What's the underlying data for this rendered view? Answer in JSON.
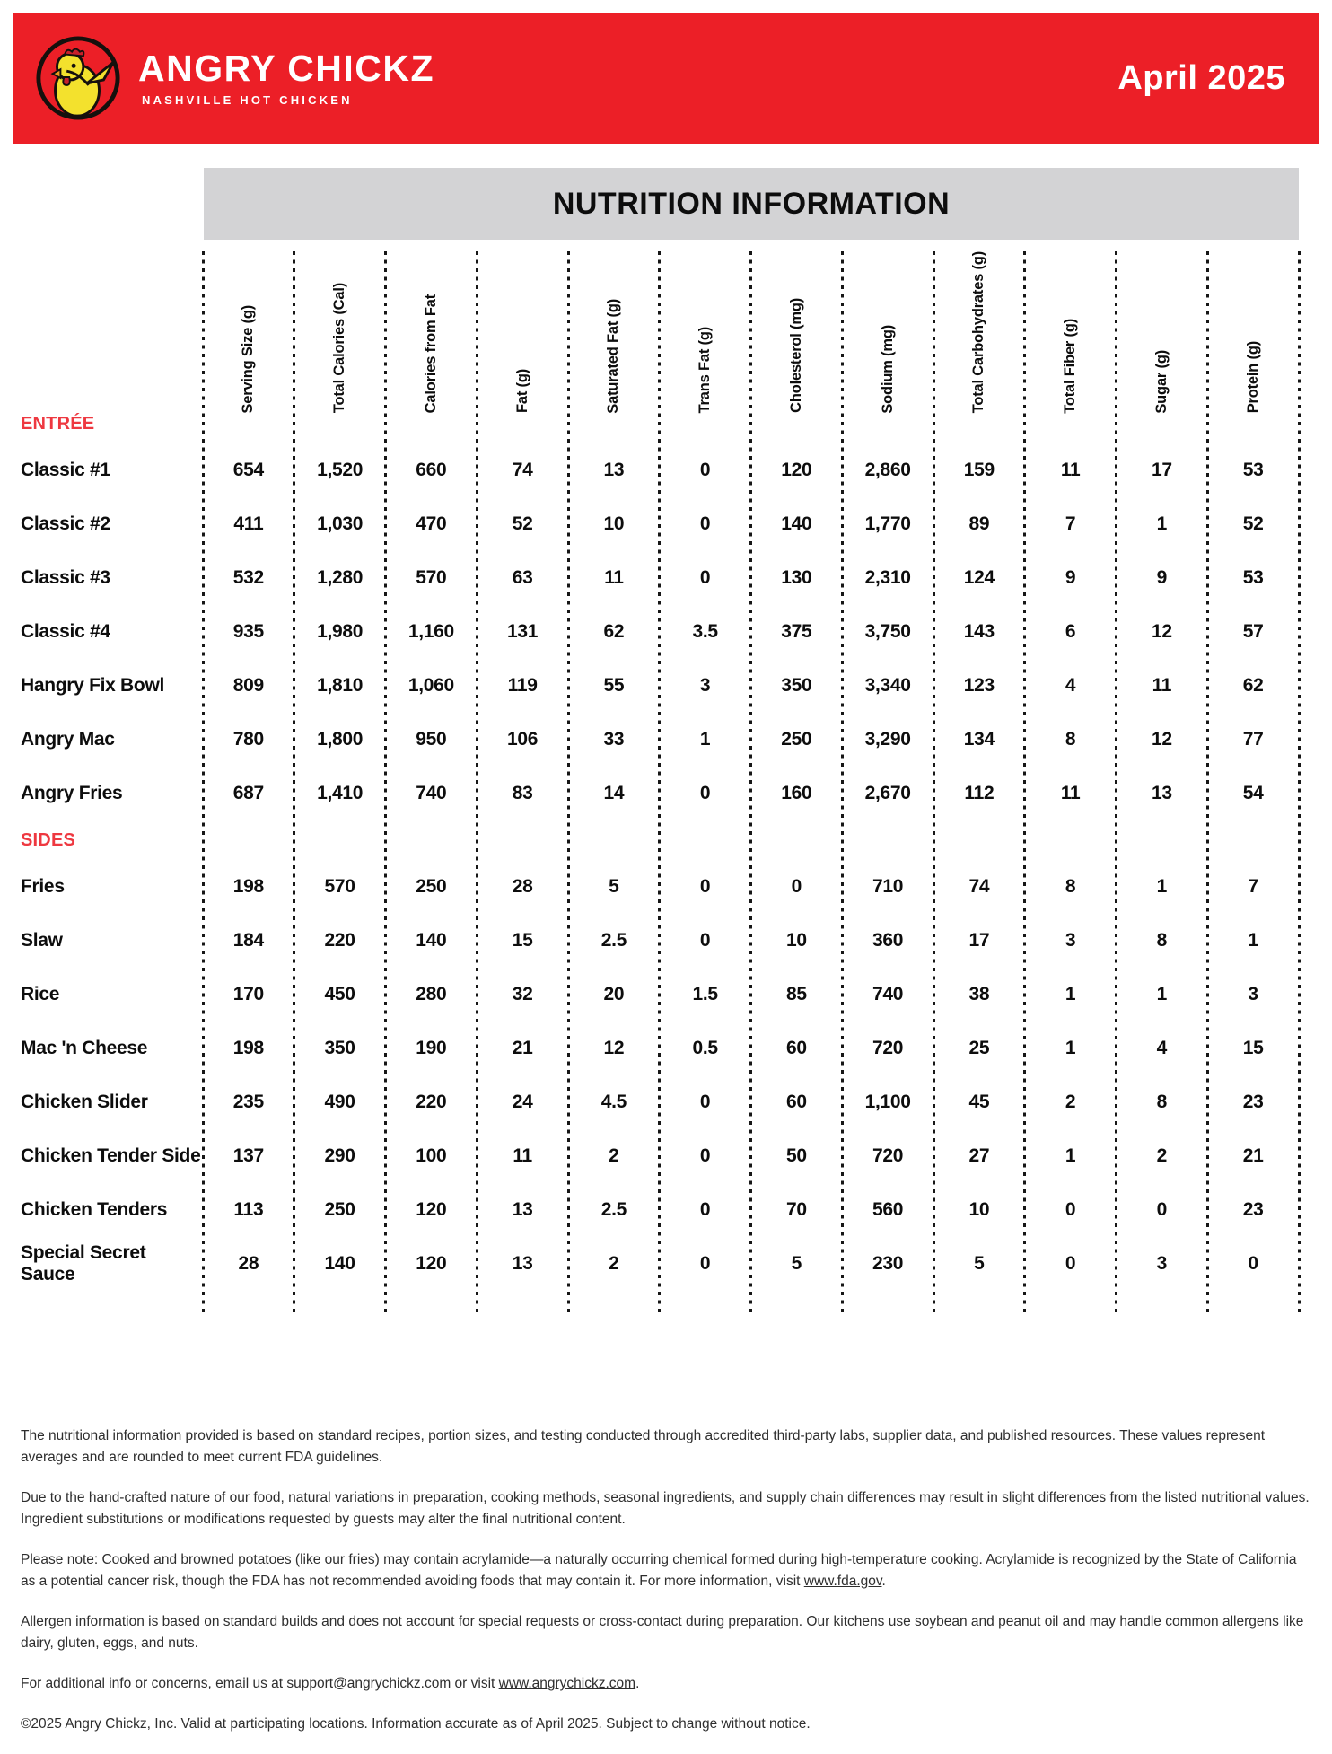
{
  "header": {
    "brand": "ANGRY CHICKZ",
    "tagline": "NASHVILLE HOT CHICKEN",
    "date": "April 2025"
  },
  "banner": {
    "title": "NUTRITION INFORMATION"
  },
  "table": {
    "columns": [
      "Serving Size (g)",
      "Total Calories (Cal)",
      "Calories from Fat",
      "Fat (g)",
      "Saturated Fat (g)",
      "Trans Fat (g)",
      "Cholesterol (mg)",
      "Sodium (mg)",
      "Total Carbohydrates (g)",
      "Total Fiber (g)",
      "Sugar (g)",
      "Protein (g)"
    ],
    "sections": [
      {
        "label": "ENTRÉE",
        "rows": [
          {
            "name": "Classic #1",
            "values": [
              "654",
              "1,520",
              "660",
              "74",
              "13",
              "0",
              "120",
              "2,860",
              "159",
              "11",
              "17",
              "53"
            ]
          },
          {
            "name": "Classic #2",
            "values": [
              "411",
              "1,030",
              "470",
              "52",
              "10",
              "0",
              "140",
              "1,770",
              "89",
              "7",
              "1",
              "52"
            ]
          },
          {
            "name": "Classic #3",
            "values": [
              "532",
              "1,280",
              "570",
              "63",
              "11",
              "0",
              "130",
              "2,310",
              "124",
              "9",
              "9",
              "53"
            ]
          },
          {
            "name": "Classic #4",
            "values": [
              "935",
              "1,980",
              "1,160",
              "131",
              "62",
              "3.5",
              "375",
              "3,750",
              "143",
              "6",
              "12",
              "57"
            ]
          },
          {
            "name": "Hangry Fix Bowl",
            "values": [
              "809",
              "1,810",
              "1,060",
              "119",
              "55",
              "3",
              "350",
              "3,340",
              "123",
              "4",
              "11",
              "62"
            ]
          },
          {
            "name": "Angry Mac",
            "values": [
              "780",
              "1,800",
              "950",
              "106",
              "33",
              "1",
              "250",
              "3,290",
              "134",
              "8",
              "12",
              "77"
            ]
          },
          {
            "name": "Angry Fries",
            "values": [
              "687",
              "1,410",
              "740",
              "83",
              "14",
              "0",
              "160",
              "2,670",
              "112",
              "11",
              "13",
              "54"
            ]
          }
        ]
      },
      {
        "label": "SIDES",
        "rows": [
          {
            "name": "Fries",
            "values": [
              "198",
              "570",
              "250",
              "28",
              "5",
              "0",
              "0",
              "710",
              "74",
              "8",
              "1",
              "7"
            ]
          },
          {
            "name": "Slaw",
            "values": [
              "184",
              "220",
              "140",
              "15",
              "2.5",
              "0",
              "10",
              "360",
              "17",
              "3",
              "8",
              "1"
            ]
          },
          {
            "name": "Rice",
            "values": [
              "170",
              "450",
              "280",
              "32",
              "20",
              "1.5",
              "85",
              "740",
              "38",
              "1",
              "1",
              "3"
            ]
          },
          {
            "name": "Mac 'n Cheese",
            "values": [
              "198",
              "350",
              "190",
              "21",
              "12",
              "0.5",
              "60",
              "720",
              "25",
              "1",
              "4",
              "15"
            ]
          },
          {
            "name": "Chicken Slider",
            "values": [
              "235",
              "490",
              "220",
              "24",
              "4.5",
              "0",
              "60",
              "1,100",
              "45",
              "2",
              "8",
              "23"
            ]
          },
          {
            "name": "Chicken Tender Side",
            "values": [
              "137",
              "290",
              "100",
              "11",
              "2",
              "0",
              "50",
              "720",
              "27",
              "1",
              "2",
              "21"
            ]
          },
          {
            "name": "Chicken Tenders",
            "values": [
              "113",
              "250",
              "120",
              "13",
              "2.5",
              "0",
              "70",
              "560",
              "10",
              "0",
              "0",
              "23"
            ]
          },
          {
            "name": "Special Secret Sauce",
            "values": [
              "28",
              "140",
              "120",
              "13",
              "2",
              "0",
              "5",
              "230",
              "5",
              "0",
              "3",
              "0"
            ]
          }
        ]
      }
    ]
  },
  "footer": {
    "p1": "The nutritional information provided is based on standard recipes, portion sizes, and testing conducted through accredited third-party labs, supplier data, and published resources. These values represent averages and are rounded to meet current FDA guidelines.",
    "p2": "Due to the hand-crafted nature of our food, natural variations in preparation, cooking methods, seasonal ingredients, and supply chain differences may result in slight differences from the listed nutritional values. Ingredient substitutions or modifications requested by guests may alter the final nutritional content.",
    "p3_pre": "Please note: Cooked and browned potatoes (like our fries) may contain acrylamide—a naturally occurring chemical formed during high-temperature cooking. Acrylamide is recognized by the State of California as a potential cancer risk, though the FDA has not recommended avoiding foods that may contain it. For more information, visit ",
    "p3_link": "www.fda.gov",
    "p3_post": ".",
    "p4": "Allergen information is based on standard builds and does not account for special requests or cross-contact during preparation. Our kitchens use soybean and peanut oil and may handle common allergens like dairy, gluten, eggs, and nuts.",
    "p5_pre": "For additional info or concerns, email us at support@angrychickz.com or visit ",
    "p5_link": "www.angrychickz.com",
    "p5_post": ".",
    "p6": "©2025 Angry Chickz, Inc. Valid at participating locations. Information accurate as of April 2025. Subject to change without notice."
  },
  "colors": {
    "brand_red": "#EC1F27",
    "section_red": "#EE3840",
    "banner_gray": "#D3D3D5"
  }
}
